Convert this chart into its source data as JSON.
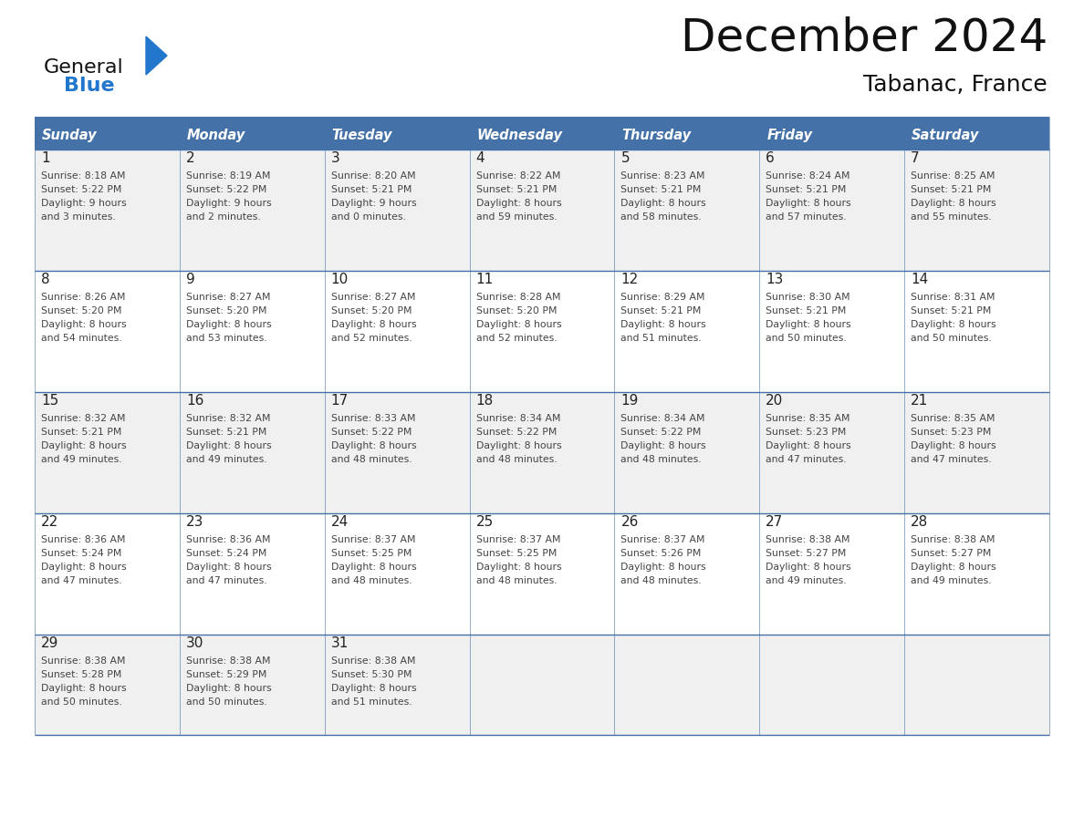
{
  "title": "December 2024",
  "subtitle": "Tabanac, France",
  "days_of_week": [
    "Sunday",
    "Monday",
    "Tuesday",
    "Wednesday",
    "Thursday",
    "Friday",
    "Saturday"
  ],
  "header_bg_color": "#4472a8",
  "header_text_color": "#FFFFFF",
  "cell_bg_color1": "#f0f0f0",
  "cell_bg_color2": "#ffffff",
  "cell_border_color": "#4472a8",
  "day_number_color": "#222222",
  "cell_text_color": "#444444",
  "title_color": "#111111",
  "subtitle_color": "#111111",
  "logo_general_color": "#111111",
  "logo_blue_color": "#2277cc",
  "fig_width": 11.88,
  "fig_height": 9.18,
  "weeks": [
    {
      "days": [
        {
          "date": 1,
          "sunrise": "8:18 AM",
          "sunset": "5:22 PM",
          "daylight": "9 hours and 3 minutes."
        },
        {
          "date": 2,
          "sunrise": "8:19 AM",
          "sunset": "5:22 PM",
          "daylight": "9 hours and 2 minutes."
        },
        {
          "date": 3,
          "sunrise": "8:20 AM",
          "sunset": "5:21 PM",
          "daylight": "9 hours and 0 minutes."
        },
        {
          "date": 4,
          "sunrise": "8:22 AM",
          "sunset": "5:21 PM",
          "daylight": "8 hours and 59 minutes."
        },
        {
          "date": 5,
          "sunrise": "8:23 AM",
          "sunset": "5:21 PM",
          "daylight": "8 hours and 58 minutes."
        },
        {
          "date": 6,
          "sunrise": "8:24 AM",
          "sunset": "5:21 PM",
          "daylight": "8 hours and 57 minutes."
        },
        {
          "date": 7,
          "sunrise": "8:25 AM",
          "sunset": "5:21 PM",
          "daylight": "8 hours and 55 minutes."
        }
      ]
    },
    {
      "days": [
        {
          "date": 8,
          "sunrise": "8:26 AM",
          "sunset": "5:20 PM",
          "daylight": "8 hours and 54 minutes."
        },
        {
          "date": 9,
          "sunrise": "8:27 AM",
          "sunset": "5:20 PM",
          "daylight": "8 hours and 53 minutes."
        },
        {
          "date": 10,
          "sunrise": "8:27 AM",
          "sunset": "5:20 PM",
          "daylight": "8 hours and 52 minutes."
        },
        {
          "date": 11,
          "sunrise": "8:28 AM",
          "sunset": "5:20 PM",
          "daylight": "8 hours and 52 minutes."
        },
        {
          "date": 12,
          "sunrise": "8:29 AM",
          "sunset": "5:21 PM",
          "daylight": "8 hours and 51 minutes."
        },
        {
          "date": 13,
          "sunrise": "8:30 AM",
          "sunset": "5:21 PM",
          "daylight": "8 hours and 50 minutes."
        },
        {
          "date": 14,
          "sunrise": "8:31 AM",
          "sunset": "5:21 PM",
          "daylight": "8 hours and 50 minutes."
        }
      ]
    },
    {
      "days": [
        {
          "date": 15,
          "sunrise": "8:32 AM",
          "sunset": "5:21 PM",
          "daylight": "8 hours and 49 minutes."
        },
        {
          "date": 16,
          "sunrise": "8:32 AM",
          "sunset": "5:21 PM",
          "daylight": "8 hours and 49 minutes."
        },
        {
          "date": 17,
          "sunrise": "8:33 AM",
          "sunset": "5:22 PM",
          "daylight": "8 hours and 48 minutes."
        },
        {
          "date": 18,
          "sunrise": "8:34 AM",
          "sunset": "5:22 PM",
          "daylight": "8 hours and 48 minutes."
        },
        {
          "date": 19,
          "sunrise": "8:34 AM",
          "sunset": "5:22 PM",
          "daylight": "8 hours and 48 minutes."
        },
        {
          "date": 20,
          "sunrise": "8:35 AM",
          "sunset": "5:23 PM",
          "daylight": "8 hours and 47 minutes."
        },
        {
          "date": 21,
          "sunrise": "8:35 AM",
          "sunset": "5:23 PM",
          "daylight": "8 hours and 47 minutes."
        }
      ]
    },
    {
      "days": [
        {
          "date": 22,
          "sunrise": "8:36 AM",
          "sunset": "5:24 PM",
          "daylight": "8 hours and 47 minutes."
        },
        {
          "date": 23,
          "sunrise": "8:36 AM",
          "sunset": "5:24 PM",
          "daylight": "8 hours and 47 minutes."
        },
        {
          "date": 24,
          "sunrise": "8:37 AM",
          "sunset": "5:25 PM",
          "daylight": "8 hours and 48 minutes."
        },
        {
          "date": 25,
          "sunrise": "8:37 AM",
          "sunset": "5:25 PM",
          "daylight": "8 hours and 48 minutes."
        },
        {
          "date": 26,
          "sunrise": "8:37 AM",
          "sunset": "5:26 PM",
          "daylight": "8 hours and 48 minutes."
        },
        {
          "date": 27,
          "sunrise": "8:38 AM",
          "sunset": "5:27 PM",
          "daylight": "8 hours and 49 minutes."
        },
        {
          "date": 28,
          "sunrise": "8:38 AM",
          "sunset": "5:27 PM",
          "daylight": "8 hours and 49 minutes."
        }
      ]
    },
    {
      "days": [
        {
          "date": 29,
          "sunrise": "8:38 AM",
          "sunset": "5:28 PM",
          "daylight": "8 hours and 50 minutes."
        },
        {
          "date": 30,
          "sunrise": "8:38 AM",
          "sunset": "5:29 PM",
          "daylight": "8 hours and 50 minutes."
        },
        {
          "date": 31,
          "sunrise": "8:38 AM",
          "sunset": "5:30 PM",
          "daylight": "8 hours and 51 minutes."
        }
      ]
    }
  ]
}
